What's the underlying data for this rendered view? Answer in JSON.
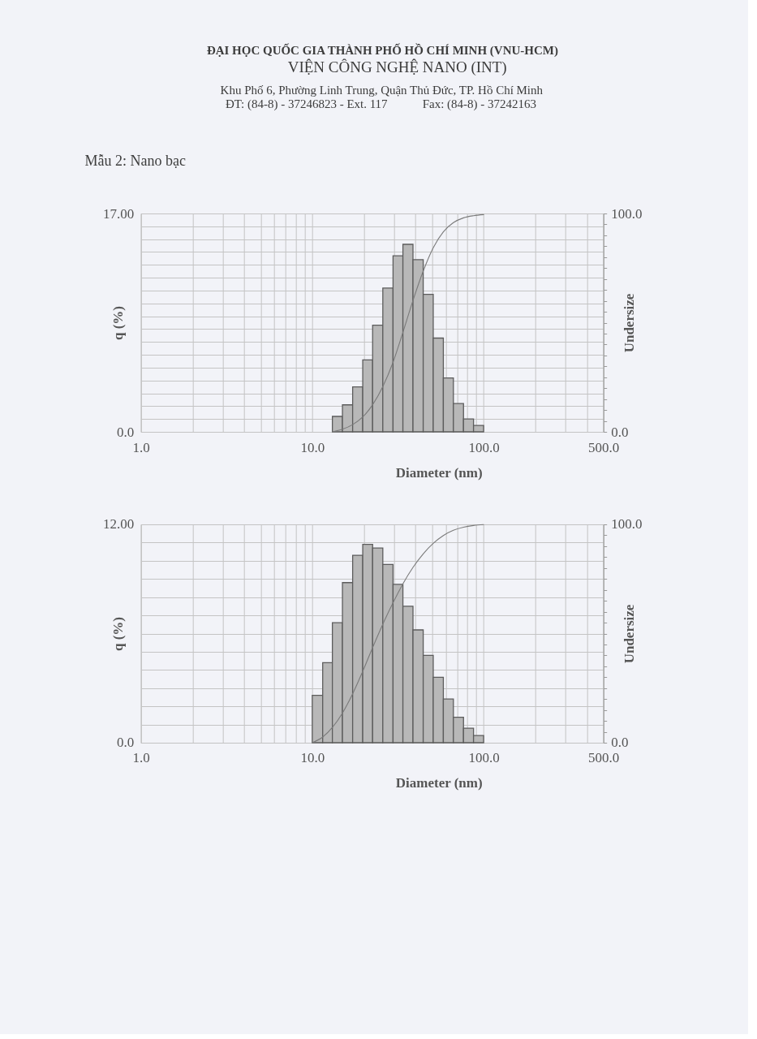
{
  "chart_data": [
    {
      "type": "histogram",
      "title": "ĐẠI HỌC QUỐC GIA THÀNH PHỐ HỒ CHÍ MINH (VNU-HCM)",
      "subtitle": "VIỆN CÔNG NGHỆ NANO (INT)",
      "annotations": [
        "Khu Phố 6, Phường Linh Trung, Quận Thủ Đức, TP. Hồ Chí Minh",
        "ĐT: (84-8) - 37246823 - Ext. 117",
        "Fax: (84-8) - 37242163",
        "Mẫu 2: Nano bạc"
      ],
      "xlabel": "Diameter (nm)",
      "ylabel": "q (%)",
      "y2label": "Undersize",
      "bins": [
        13.1,
        15.0,
        17.2,
        19.7,
        22.5,
        25.8,
        29.6,
        33.8,
        38.7,
        44.4,
        50.8,
        58.2,
        66.6,
        76.3,
        87.3,
        100
      ],
      "values": [
        1.2,
        2.1,
        3.5,
        5.6,
        8.3,
        11.2,
        13.7,
        14.6,
        13.4,
        10.7,
        7.3,
        4.2,
        2.2,
        1.0,
        0.5
      ],
      "color": "#b8b8b8",
      "series": [
        {
          "type": "line",
          "axis": "y2",
          "color": "#7a7a7a",
          "x": [
            13.1,
            15.0,
            17.2,
            19.7,
            22.5,
            25.8,
            29.6,
            33.8,
            38.7,
            44.4,
            50.8,
            58.2,
            66.6,
            76.3,
            87.3,
            100
          ],
          "values": [
            0,
            1.2,
            3.3,
            6.8,
            12.4,
            20.7,
            31.9,
            45.6,
            60.2,
            73.6,
            84.3,
            91.6,
            95.8,
            98.0,
            99.0,
            99.5
          ]
        }
      ],
      "log": "x",
      "grid": true,
      "xlim": [
        1,
        500
      ],
      "xticks": [
        {
          "value": 1,
          "label": "1.0"
        },
        {
          "value": 2,
          "label": null
        },
        {
          "value": 3,
          "label": null
        },
        {
          "value": 4,
          "label": null
        },
        {
          "value": 5,
          "label": null
        },
        {
          "value": 6,
          "label": null
        },
        {
          "value": 7,
          "label": null
        },
        {
          "value": 8,
          "label": null
        },
        {
          "value": 9,
          "label": null
        },
        {
          "value": 10,
          "label": "10.0"
        },
        {
          "value": 20,
          "label": null
        },
        {
          "value": 30,
          "label": null
        },
        {
          "value": 40,
          "label": null
        },
        {
          "value": 50,
          "label": null
        },
        {
          "value": 60,
          "label": null
        },
        {
          "value": 70,
          "label": null
        },
        {
          "value": 80,
          "label": null
        },
        {
          "value": 90,
          "label": null
        },
        {
          "value": 100,
          "label": "100.0"
        },
        {
          "value": 200,
          "label": null
        },
        {
          "value": 300,
          "label": null
        },
        {
          "value": 400,
          "label": null
        },
        {
          "value": 500,
          "label": "500.0"
        }
      ],
      "ylim": [
        0,
        17
      ],
      "yticks": [
        {
          "value": 0,
          "label": "0.0"
        },
        {
          "value": 1,
          "label": null
        },
        {
          "value": 2,
          "label": null
        },
        {
          "value": 3,
          "label": null
        },
        {
          "value": 4,
          "label": null
        },
        {
          "value": 5,
          "label": null
        },
        {
          "value": 6,
          "label": null
        },
        {
          "value": 7,
          "label": null
        },
        {
          "value": 8,
          "label": null
        },
        {
          "value": 9,
          "label": null
        },
        {
          "value": 10,
          "label": null
        },
        {
          "value": 11,
          "label": null
        },
        {
          "value": 12,
          "label": null
        },
        {
          "value": 13,
          "label": null
        },
        {
          "value": 14,
          "label": null
        },
        {
          "value": 15,
          "label": null
        },
        {
          "value": 16,
          "label": null
        },
        {
          "value": 17,
          "label": "17.00"
        }
      ],
      "y2lim": [
        0,
        100
      ],
      "y2ticks": [
        {
          "value": 0,
          "label": "0.0"
        },
        {
          "value": 5,
          "label": null
        },
        {
          "value": 10,
          "label": null
        },
        {
          "value": 15,
          "label": null
        },
        {
          "value": 20,
          "label": null
        },
        {
          "value": 25,
          "label": null
        },
        {
          "value": 30,
          "label": null
        },
        {
          "value": 35,
          "label": null
        },
        {
          "value": 40,
          "label": null
        },
        {
          "value": 45,
          "label": null
        },
        {
          "value": 50,
          "label": null
        },
        {
          "value": 55,
          "label": null
        },
        {
          "value": 60,
          "label": null
        },
        {
          "value": 65,
          "label": null
        },
        {
          "value": 70,
          "label": null
        },
        {
          "value": 75,
          "label": null
        },
        {
          "value": 80,
          "label": null
        },
        {
          "value": 85,
          "label": null
        },
        {
          "value": 90,
          "label": null
        },
        {
          "value": 95,
          "label": null
        },
        {
          "value": 100,
          "label": "100.0"
        }
      ]
    },
    {
      "type": "histogram",
      "xlabel": "Diameter (nm)",
      "ylabel": "q (%)",
      "y2label": "Undersize",
      "bins": [
        10.0,
        11.5,
        13.1,
        15.0,
        17.2,
        19.7,
        22.5,
        25.8,
        29.6,
        33.8,
        38.7,
        44.4,
        50.8,
        58.2,
        66.6,
        76.3,
        87.3,
        100
      ],
      "values": [
        2.6,
        4.4,
        6.6,
        8.8,
        10.3,
        10.9,
        10.7,
        9.8,
        8.7,
        7.5,
        6.2,
        4.8,
        3.6,
        2.4,
        1.4,
        0.8,
        0.4
      ],
      "color": "#b8b8b8",
      "series": [
        {
          "type": "line",
          "axis": "y2",
          "color": "#7a7a7a",
          "x": [
            10.0,
            11.5,
            13.1,
            15.0,
            17.2,
            19.7,
            22.5,
            25.8,
            29.6,
            33.8,
            38.7,
            44.4,
            50.8,
            58.2,
            66.6,
            76.3,
            87.3,
            100
          ],
          "values": [
            0,
            2.6,
            7.0,
            13.6,
            22.4,
            32.7,
            43.6,
            54.3,
            64.1,
            72.8,
            80.3,
            86.5,
            91.3,
            94.9,
            97.3,
            98.7,
            99.5,
            99.9
          ]
        }
      ],
      "log": "x",
      "grid": true,
      "xlim": [
        1,
        500
      ],
      "xticks": [
        {
          "value": 1,
          "label": "1.0"
        },
        {
          "value": 2,
          "label": null
        },
        {
          "value": 3,
          "label": null
        },
        {
          "value": 4,
          "label": null
        },
        {
          "value": 5,
          "label": null
        },
        {
          "value": 6,
          "label": null
        },
        {
          "value": 7,
          "label": null
        },
        {
          "value": 8,
          "label": null
        },
        {
          "value": 9,
          "label": null
        },
        {
          "value": 10,
          "label": "10.0"
        },
        {
          "value": 20,
          "label": null
        },
        {
          "value": 30,
          "label": null
        },
        {
          "value": 40,
          "label": null
        },
        {
          "value": 50,
          "label": null
        },
        {
          "value": 60,
          "label": null
        },
        {
          "value": 70,
          "label": null
        },
        {
          "value": 80,
          "label": null
        },
        {
          "value": 90,
          "label": null
        },
        {
          "value": 100,
          "label": "100.0"
        },
        {
          "value": 200,
          "label": null
        },
        {
          "value": 300,
          "label": null
        },
        {
          "value": 400,
          "label": null
        },
        {
          "value": 500,
          "label": "500.0"
        }
      ],
      "ylim": [
        0,
        12
      ],
      "yticks": [
        {
          "value": 0,
          "label": "0.0"
        },
        {
          "value": 1,
          "label": null
        },
        {
          "value": 2,
          "label": null
        },
        {
          "value": 3,
          "label": null
        },
        {
          "value": 4,
          "label": null
        },
        {
          "value": 5,
          "label": null
        },
        {
          "value": 6,
          "label": null
        },
        {
          "value": 7,
          "label": null
        },
        {
          "value": 8,
          "label": null
        },
        {
          "value": 9,
          "label": null
        },
        {
          "value": 10,
          "label": null
        },
        {
          "value": 11,
          "label": null
        },
        {
          "value": 12,
          "label": "12.00"
        }
      ],
      "y2lim": [
        0,
        100
      ],
      "y2ticks": [
        {
          "value": 0,
          "label": "0.0"
        },
        {
          "value": 5,
          "label": null
        },
        {
          "value": 10,
          "label": null
        },
        {
          "value": 15,
          "label": null
        },
        {
          "value": 20,
          "label": null
        },
        {
          "value": 25,
          "label": null
        },
        {
          "value": 30,
          "label": null
        },
        {
          "value": 35,
          "label": null
        },
        {
          "value": 40,
          "label": null
        },
        {
          "value": 45,
          "label": null
        },
        {
          "value": 50,
          "label": null
        },
        {
          "value": 55,
          "label": null
        },
        {
          "value": 60,
          "label": null
        },
        {
          "value": 65,
          "label": null
        },
        {
          "value": 70,
          "label": null
        },
        {
          "value": 75,
          "label": null
        },
        {
          "value": 80,
          "label": null
        },
        {
          "value": 85,
          "label": null
        },
        {
          "value": 90,
          "label": null
        },
        {
          "value": 95,
          "label": null
        },
        {
          "value": 100,
          "label": "100.0"
        }
      ]
    }
  ]
}
